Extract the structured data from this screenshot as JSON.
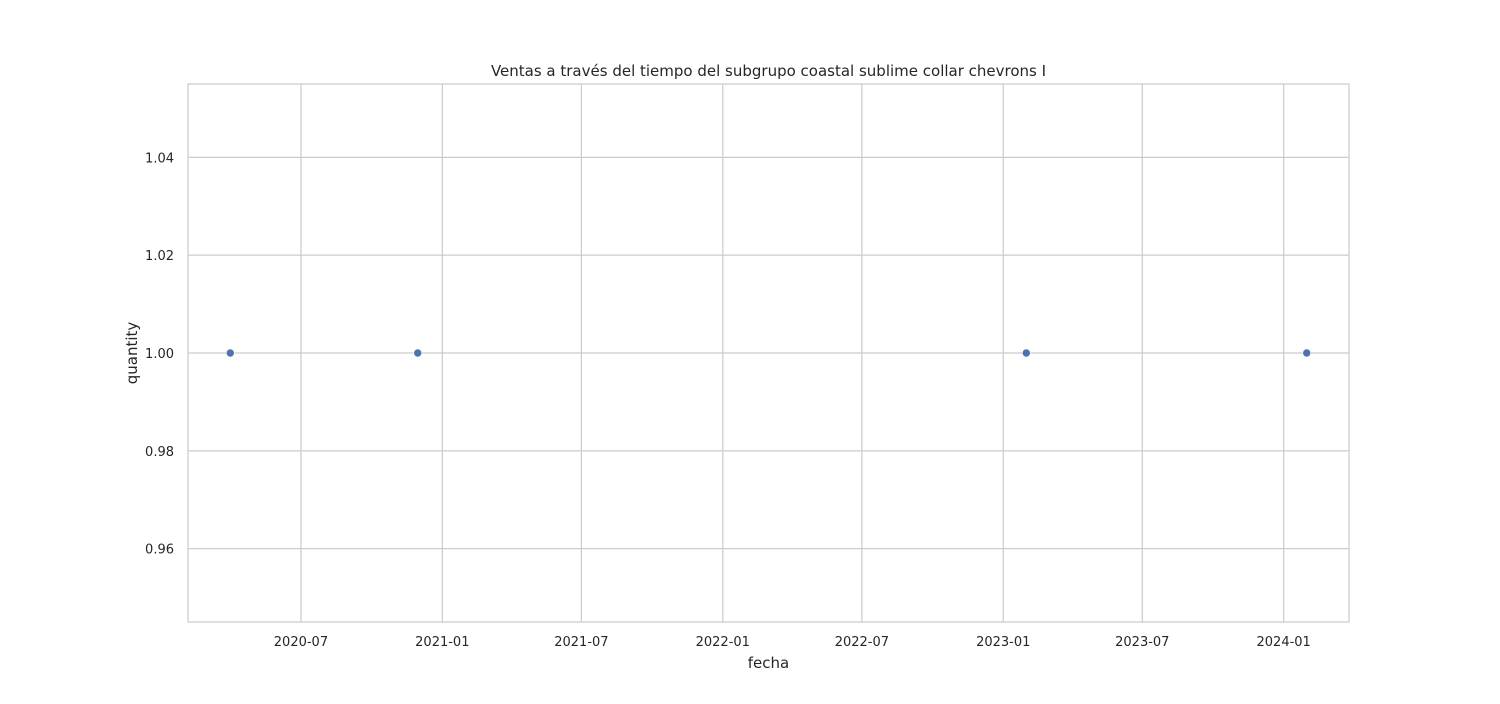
{
  "chart_data": {
    "type": "scatter",
    "title": "Ventas a través del tiempo del subgrupo coastal sublime collar chevrons I",
    "xlabel": "fecha",
    "ylabel": "quantity",
    "x_axis_type": "date",
    "xlim": [
      "2020-02-05",
      "2024-03-26"
    ],
    "ylim": [
      0.945,
      1.055
    ],
    "x_ticks": [
      "2020-07",
      "2021-01",
      "2021-07",
      "2022-01",
      "2022-07",
      "2023-01",
      "2023-07",
      "2024-01"
    ],
    "y_ticks": [
      0.96,
      0.98,
      1.0,
      1.02,
      1.04
    ],
    "y_tick_labels": [
      "0.96",
      "0.98",
      "1.00",
      "1.02",
      "1.04"
    ],
    "grid": true,
    "marker_color": "#4c72b0",
    "grid_color": "#cccccc",
    "series": [
      {
        "x": [
          "2020-03-31",
          "2020-11-30",
          "2023-01-31",
          "2024-01-31"
        ],
        "y": [
          1,
          1,
          1,
          1
        ]
      }
    ]
  }
}
